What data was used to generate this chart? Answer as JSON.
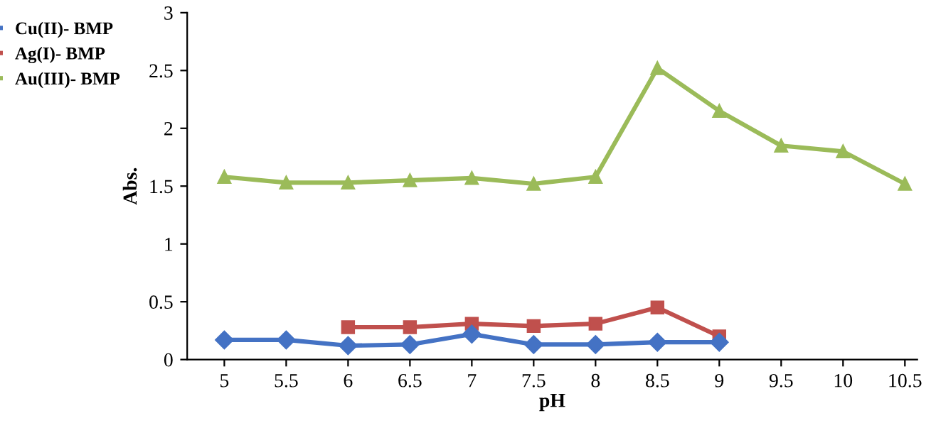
{
  "chart_data": {
    "type": "line",
    "xlabel": "pH",
    "ylabel": "Abs.",
    "xlim": [
      4.7,
      10.6
    ],
    "ylim": [
      0,
      3
    ],
    "xticks": [
      5,
      5.5,
      6,
      6.5,
      7,
      7.5,
      8,
      8.5,
      9,
      9.5,
      10,
      10.5
    ],
    "yticks": [
      0,
      0.5,
      1,
      1.5,
      2,
      2.5,
      3
    ],
    "grid": false,
    "legend": "left",
    "series": [
      {
        "name": "Cu(II)- BMP",
        "color": "#4472c4",
        "marker": "diamond",
        "x": [
          5,
          5.5,
          6,
          6.5,
          7,
          7.5,
          8,
          8.5,
          9
        ],
        "values": [
          0.17,
          0.17,
          0.12,
          0.13,
          0.22,
          0.13,
          0.13,
          0.15,
          0.15
        ]
      },
      {
        "name": "Ag(I)- BMP",
        "color": "#c0504d",
        "marker": "square",
        "x": [
          6,
          6.5,
          7,
          7.5,
          8,
          8.5,
          9
        ],
        "values": [
          0.28,
          0.28,
          0.31,
          0.29,
          0.31,
          0.45,
          0.2
        ]
      },
      {
        "name": "Au(III)- BMP",
        "color": "#9bbb59",
        "marker": "triangle",
        "x": [
          5,
          5.5,
          6,
          6.5,
          7,
          7.5,
          8,
          8.5,
          9,
          9.5,
          10,
          10.5
        ],
        "values": [
          1.58,
          1.53,
          1.53,
          1.55,
          1.57,
          1.52,
          1.58,
          2.52,
          2.15,
          1.85,
          1.8,
          1.52
        ]
      }
    ]
  }
}
